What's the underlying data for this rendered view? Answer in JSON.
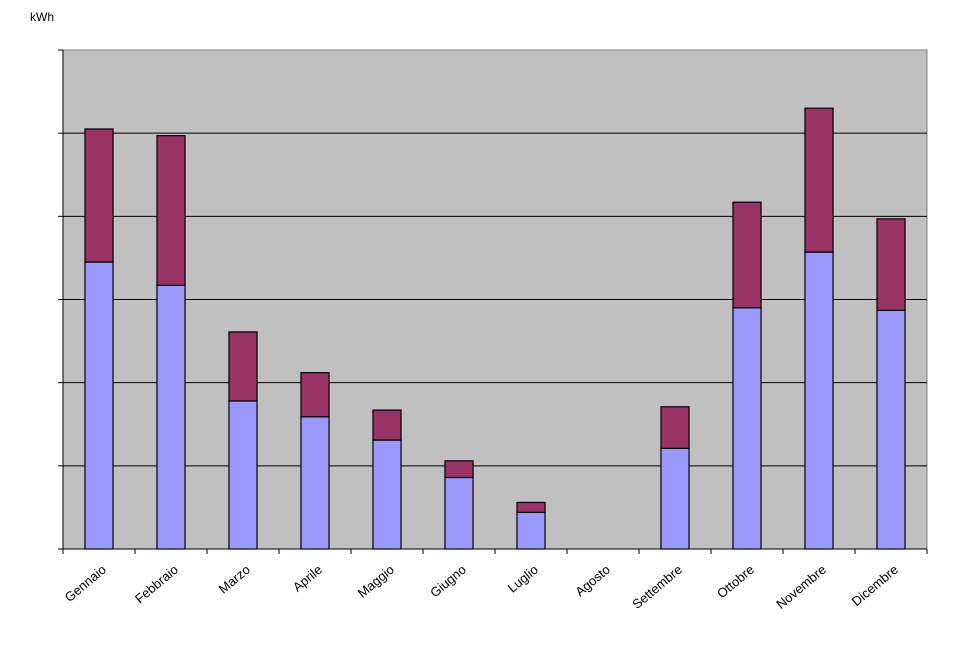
{
  "chart_data": {
    "type": "bar",
    "stacked": true,
    "ylabel": "kWh",
    "categories": [
      "Gennaio",
      "Febbraio",
      "Marzo",
      "Aprile",
      "Maggio",
      "Giugno",
      "Luglio",
      "Agosto",
      "Settembre",
      "Ottobre",
      "Novembre",
      "Dicembre"
    ],
    "series": [
      {
        "color": "#9999ff",
        "values": [
          3.45,
          3.17,
          1.78,
          1.59,
          1.31,
          0.86,
          0.44,
          0,
          1.21,
          2.9,
          3.57,
          2.87
        ]
      },
      {
        "color": "#993366",
        "values": [
          1.6,
          1.8,
          0.83,
          0.53,
          0.36,
          0.2,
          0.12,
          0,
          0.5,
          1.27,
          1.73,
          1.1
        ]
      }
    ],
    "ylim": [
      0,
      6
    ],
    "yticks": [
      0,
      1,
      2,
      3,
      4,
      5,
      6
    ],
    "show_ytick_labels": false,
    "grid": true,
    "plot_background": "#c0c0c0",
    "legend": "none"
  }
}
